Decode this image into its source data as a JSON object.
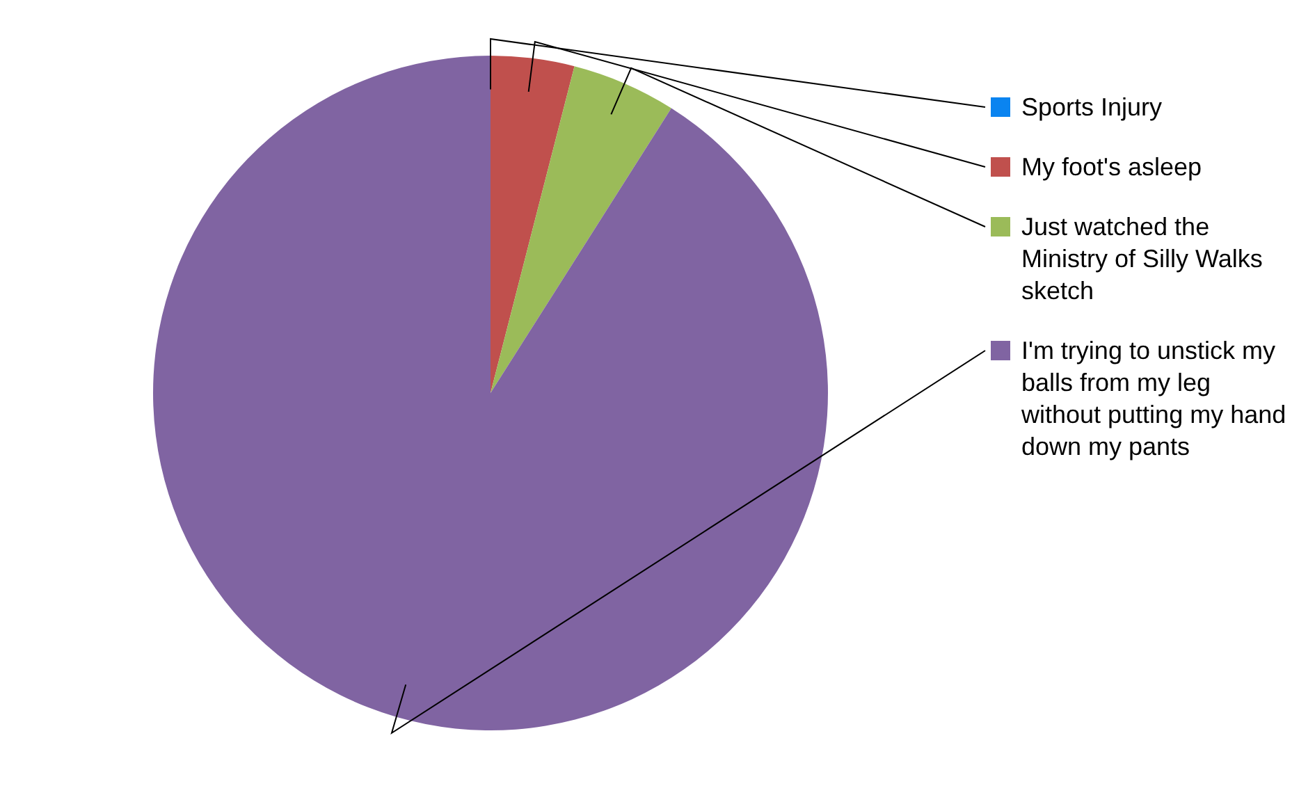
{
  "chart_data": {
    "type": "pie",
    "categories": [
      "Sports Injury",
      "My foot's asleep",
      "Just watched the Ministry of Silly Walks sketch",
      "I'm trying to unstick my balls from my leg without putting my hand down my pants"
    ],
    "values": [
      0,
      4,
      5,
      91
    ],
    "colors": [
      "#0a84f0",
      "#c0504d",
      "#9bbb59",
      "#8064a2"
    ],
    "legend": "right"
  }
}
